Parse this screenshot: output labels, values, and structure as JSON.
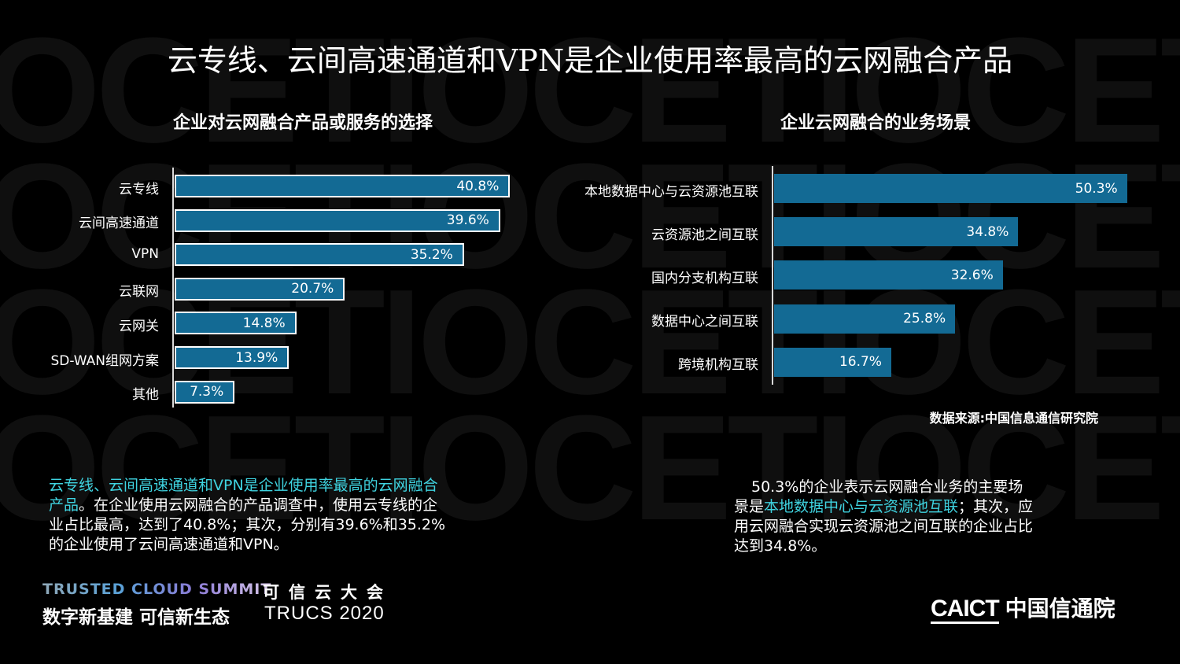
{
  "watermark": {
    "text": "OCETIOCETIOCETIOCE"
  },
  "title": "云专线、云间高速通道和VPN是企业使用率最高的云网融合产品",
  "left_chart": {
    "subtitle": "企业对云网融合产品或服务的选择",
    "items": [
      {
        "label": "云专线",
        "value": "40.8%"
      },
      {
        "label": "云间高速通道",
        "value": "39.6%"
      },
      {
        "label": "VPN",
        "value": "35.2%"
      },
      {
        "label": "云联网",
        "value": "20.7%"
      },
      {
        "label": "云网关",
        "value": "14.8%"
      },
      {
        "label": "SD-WAN组网方案",
        "value": "13.9%"
      },
      {
        "label": "其他",
        "value": "7.3%"
      }
    ]
  },
  "right_chart": {
    "subtitle": "企业云网融合的业务场景",
    "items": [
      {
        "label": "本地数据中心与云资源池互联",
        "value": "50.3%"
      },
      {
        "label": "云资源池之间互联",
        "value": "34.8%"
      },
      {
        "label": "国内分支机构互联",
        "value": "32.6%"
      },
      {
        "label": "数据中心之间互联",
        "value": "25.8%"
      },
      {
        "label": "跨境机构互联",
        "value": "16.7%"
      }
    ],
    "source": "数据来源:中国信息通信研究院"
  },
  "left_paragraph": {
    "highlight": "云专线、云间高速通道和VPN是企业使用率最高的云网融合产品",
    "rest": "。在企业使用云网融合的产品调查中，使用云专线的企业占比最高，达到了40.8%；其次，分别有39.6%和35.2%的企业使用了云间高速通道和VPN。"
  },
  "right_paragraph": {
    "before": "50.3%的企业表示云网融合业务的主要场景是",
    "highlight": "本地数据中心与云资源池互联",
    "after": "；其次，应用云网融合实现云资源池之间互联的企业占比达到34.8%。"
  },
  "footer": {
    "summit_en": "TRUSTED CLOUD SUMMIT",
    "summit_cn": "可信云大会",
    "slogan": "数字新基建 可信新生态",
    "event": "TRUCS 2020",
    "logo_en": "CAICT",
    "logo_cn": "中国信通院"
  },
  "colors": {
    "bar": "#136a94",
    "highlight": "#3fd3e0",
    "background": "#000000"
  },
  "chart_data": [
    {
      "type": "bar",
      "orientation": "horizontal",
      "title": "企业对云网融合产品或服务的选择",
      "categories": [
        "云专线",
        "云间高速通道",
        "VPN",
        "云联网",
        "云网关",
        "SD-WAN组网方案",
        "其他"
      ],
      "values": [
        40.8,
        39.6,
        35.2,
        20.7,
        14.8,
        13.9,
        7.3
      ],
      "unit": "%",
      "xlabel": "",
      "ylabel": "",
      "grid": false,
      "data_labels": true
    },
    {
      "type": "bar",
      "orientation": "horizontal",
      "title": "企业云网融合的业务场景",
      "categories": [
        "本地数据中心与云资源池互联",
        "云资源池之间互联",
        "国内分支机构互联",
        "数据中心之间互联",
        "跨境机构互联"
      ],
      "values": [
        50.3,
        34.8,
        32.6,
        25.8,
        16.7
      ],
      "unit": "%",
      "xlabel": "",
      "ylabel": "",
      "grid": false,
      "data_labels": true,
      "source": "数据来源:中国信息通信研究院"
    }
  ]
}
